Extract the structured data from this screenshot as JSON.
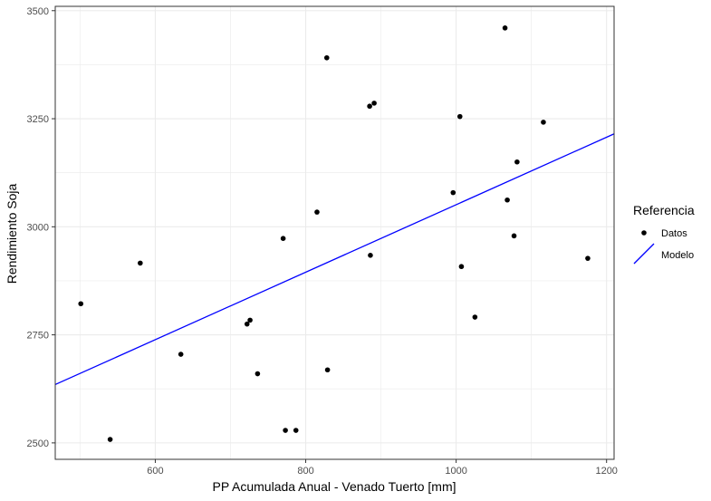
{
  "chart_data": {
    "type": "scatter",
    "xlabel": "PP Acumulada Anual - Venado Tuerto [mm]",
    "ylabel": "Rendimiento Soja",
    "xlim": [
      467,
      1210
    ],
    "ylim": [
      2462,
      3510
    ],
    "x_ticks": [
      600,
      800,
      1000,
      1200
    ],
    "y_ticks": [
      2500,
      2750,
      3000,
      3250,
      3500
    ],
    "grid": true,
    "legend": {
      "title": "Referencia",
      "position": "right",
      "entries": [
        {
          "label": "Datos",
          "kind": "point"
        },
        {
          "label": "Modelo",
          "kind": "line"
        }
      ]
    },
    "points": [
      {
        "x": 501,
        "y": 2822
      },
      {
        "x": 540,
        "y": 2508
      },
      {
        "x": 580,
        "y": 2916
      },
      {
        "x": 634,
        "y": 2705
      },
      {
        "x": 722,
        "y": 2775
      },
      {
        "x": 726,
        "y": 2784
      },
      {
        "x": 736,
        "y": 2660
      },
      {
        "x": 770,
        "y": 2973
      },
      {
        "x": 773,
        "y": 2529
      },
      {
        "x": 787,
        "y": 2529
      },
      {
        "x": 815,
        "y": 3034
      },
      {
        "x": 828,
        "y": 3391
      },
      {
        "x": 829,
        "y": 2669
      },
      {
        "x": 885,
        "y": 3279
      },
      {
        "x": 886,
        "y": 2934
      },
      {
        "x": 891,
        "y": 3286
      },
      {
        "x": 996,
        "y": 3079
      },
      {
        "x": 1005,
        "y": 3255
      },
      {
        "x": 1007,
        "y": 2908
      },
      {
        "x": 1025,
        "y": 2791
      },
      {
        "x": 1065,
        "y": 3460
      },
      {
        "x": 1068,
        "y": 3062
      },
      {
        "x": 1077,
        "y": 2979
      },
      {
        "x": 1081,
        "y": 3150
      },
      {
        "x": 1116,
        "y": 3242
      },
      {
        "x": 1175,
        "y": 2927
      }
    ],
    "model_line": {
      "name": "Modelo",
      "x": [
        467,
        1210
      ],
      "y": [
        2635,
        3215
      ]
    },
    "colors": {
      "points": "#000000",
      "model": "#0000ff",
      "grid": "#ebebeb",
      "panel_border": "#333333",
      "tick_text": "#4d4d4d"
    }
  }
}
